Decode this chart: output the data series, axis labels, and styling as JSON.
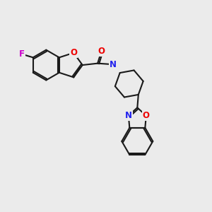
{
  "background_color": "#ebebeb",
  "bond_color": "#1a1a1a",
  "atom_colors": {
    "F": "#cc00cc",
    "O": "#ee0000",
    "N": "#2222ee",
    "C": "#1a1a1a"
  },
  "figsize": [
    3.0,
    3.0
  ],
  "dpi": 100,
  "lw": 1.5,
  "fontsize": 8.5
}
